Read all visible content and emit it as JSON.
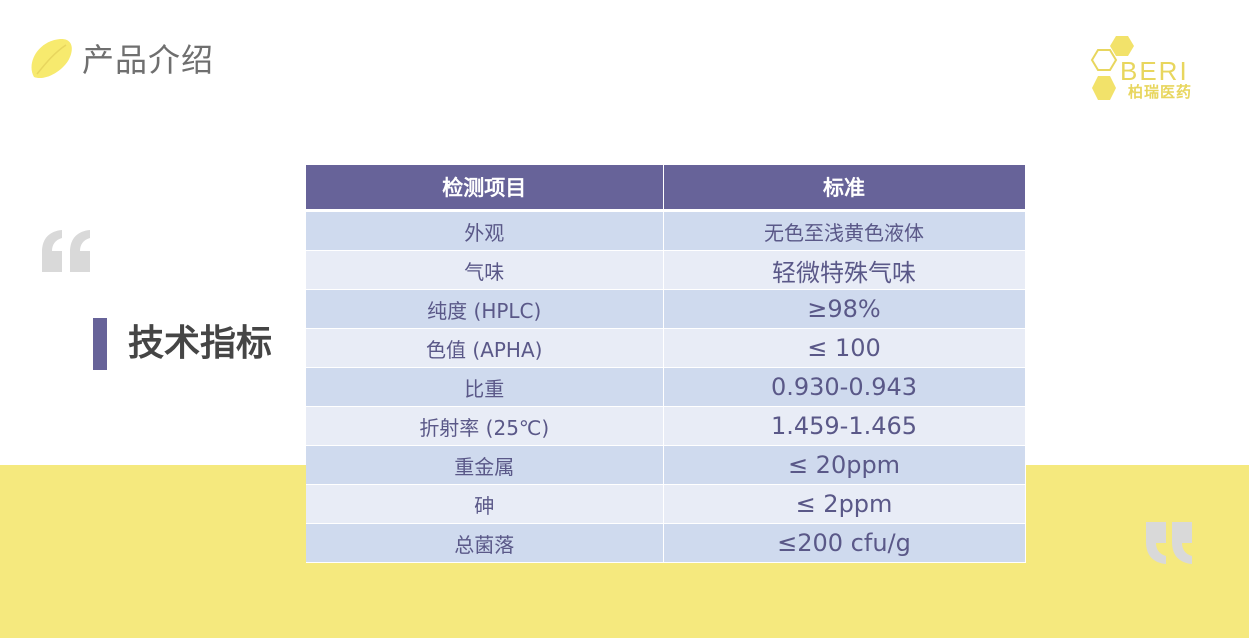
{
  "header": {
    "title": "产品介绍"
  },
  "logo": {
    "latin": "BERI",
    "chinese": "柏瑞医药"
  },
  "section": {
    "title": "技术指标"
  },
  "table": {
    "headers": [
      "检测项目",
      "标准"
    ],
    "rows": [
      {
        "item": "外观",
        "standard": "无色至浅黄色液体"
      },
      {
        "item": "气味",
        "standard": "轻微特殊气味"
      },
      {
        "item": "纯度 (HPLC)",
        "standard": "≥98%"
      },
      {
        "item": "色值 (APHA)",
        "standard": "≤ 100"
      },
      {
        "item": "比重",
        "standard": "0.930-0.943"
      },
      {
        "item": "折射率 (25℃)",
        "standard": "1.459-1.465"
      },
      {
        "item": "重金属",
        "standard": "≤ 20ppm"
      },
      {
        "item": "砷",
        "standard": "≤ 2ppm"
      },
      {
        "item": "总菌落",
        "standard": "≤200 cfu/g"
      }
    ]
  },
  "colors": {
    "accent": "#676399",
    "yellow": "#f5e97e",
    "row_dark": "#cfdaee",
    "row_light": "#e8ecf6",
    "logo": "#e8d65e",
    "quote": "#d9d9d9"
  },
  "icons": {
    "header": "yellow-leaf-icon",
    "open_quote": "open-quote-icon",
    "close_quote": "close-quote-icon",
    "logo": "hexagon-logo-icon"
  }
}
